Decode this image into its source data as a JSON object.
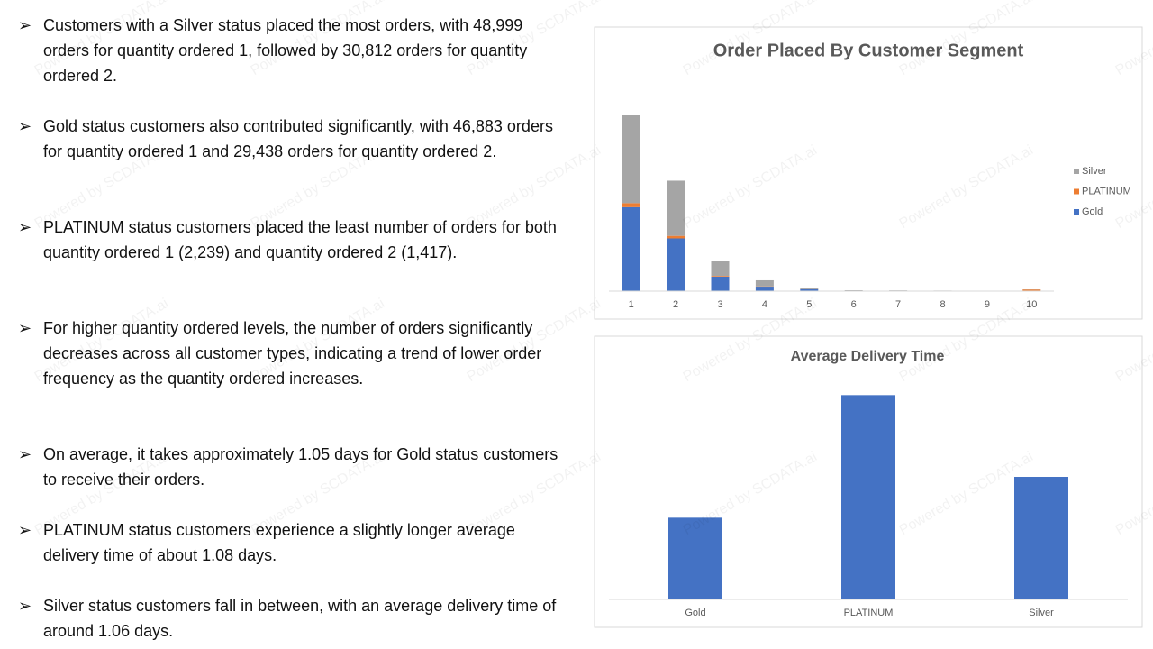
{
  "bullets": [
    "Customers with a Silver status placed the most orders, with 48,999 orders for quantity ordered 1, followed by 30,812 orders for quantity ordered 2.",
    "Gold status customers also contributed significantly, with 46,883 orders for quantity ordered 1 and 29,438 orders for quantity ordered 2.",
    "PLATINUM status customers placed the least number of orders for both quantity ordered 1 (2,239) and quantity ordered 2 (1,417).",
    "For higher quantity ordered levels, the number of orders significantly decreases across all customer types, indicating a trend of lower order frequency as the quantity ordered increases.",
    "On average, it takes approximately 1.05 days for Gold status customers to receive their orders.",
    "PLATINUM status customers experience a slightly longer average delivery time of about 1.08 days.",
    "Silver status customers fall in between, with an average delivery time of around 1.06 days."
  ],
  "watermark": "Powered by SCDATA.ai",
  "chart_data": [
    {
      "type": "stacked_bar",
      "title": "Order Placed By Customer Segment",
      "categories": [
        "1",
        "2",
        "3",
        "4",
        "5",
        "6",
        "7",
        "8",
        "9",
        "10"
      ],
      "series": [
        {
          "name": "Gold",
          "color": "#4472c4",
          "values": [
            46883,
            29438,
            8100,
            2500,
            1000,
            250,
            200,
            150,
            120,
            100
          ]
        },
        {
          "name": "PLATINUM",
          "color": "#ed7d31",
          "values": [
            2239,
            1417,
            400,
            150,
            50,
            10,
            10,
            10,
            10,
            800
          ]
        },
        {
          "name": "Silver",
          "color": "#a5a5a5",
          "values": [
            48999,
            30812,
            8300,
            3400,
            950,
            240,
            200,
            150,
            120,
            100
          ]
        }
      ],
      "legend": "right"
    },
    {
      "type": "bar",
      "title": "Average Delivery Time",
      "categories": [
        "Gold",
        "PLATINUM",
        "Silver"
      ],
      "values": [
        1.05,
        1.08,
        1.06
      ],
      "color": "#4472c4",
      "ylim": [
        1.03,
        1.09
      ]
    }
  ]
}
